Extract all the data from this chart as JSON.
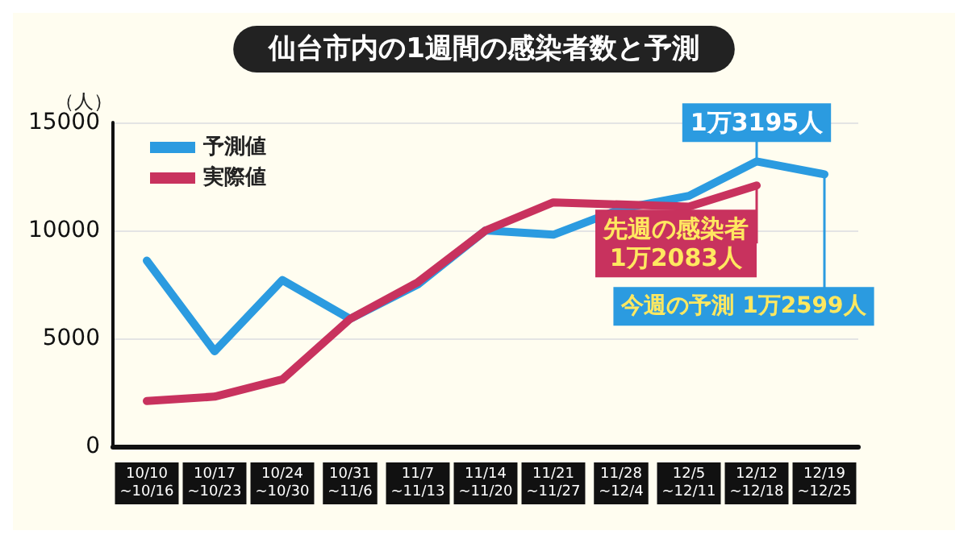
{
  "chart_data": {
    "type": "line",
    "title": "仙台市内の1週間の感染者数と予測",
    "ylabel": "（人）",
    "categories": [
      "10/10\n~10/16",
      "10/17\n~10/23",
      "10/24\n~10/30",
      "10/31\n~11/6",
      "11/7\n~11/13",
      "11/14\n~11/20",
      "11/21\n~11/27",
      "11/28\n~12/4",
      "12/5\n~12/11",
      "12/12\n~12/18",
      "12/19\n~12/25"
    ],
    "series": [
      {
        "name": "予測値",
        "color": "#2b9be0",
        "values": [
          8600,
          4400,
          7700,
          5900,
          7500,
          10000,
          9800,
          11000,
          11600,
          13195,
          12599
        ]
      },
      {
        "name": "実際値",
        "color": "#c8325e",
        "values": [
          2100,
          2300,
          3100,
          5900,
          7600,
          10000,
          11300,
          11200,
          11100,
          12083,
          null
        ]
      }
    ],
    "ylim": [
      0,
      15000
    ],
    "yticks": [
      0,
      5000,
      10000,
      15000
    ],
    "grid": "y",
    "legend": "top left",
    "marker": "none",
    "line_style": "solid",
    "annotations": [
      {
        "text": "1万3195人",
        "x": "12/12\n~12/18",
        "y": 13195
      },
      {
        "text": "先週の感染者\n1万2083人",
        "x": "12/12\n~12/18",
        "y": 12083
      },
      {
        "text": "今週の予測 1万2599人",
        "x": "12/19\n~12/25",
        "y": 12599
      }
    ]
  }
}
